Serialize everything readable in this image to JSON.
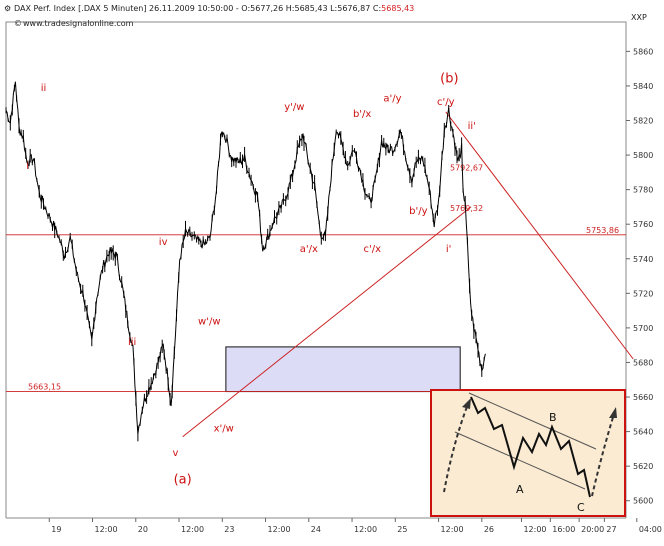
{
  "header": {
    "instrument": "DAX Perf. Index [.DAX  5 Minuten] 26.11.2009 10:50:00",
    "ohlc": "- O:5677,26 H:5685,43 L:5676,87 C:",
    "last": "5685,43",
    "source": "www.tradesignalonline.com",
    "axis_label": "XXP"
  },
  "colors": {
    "price": "#000000",
    "annotation": "#cc1111",
    "level_line": "#cc2222",
    "gap_fill": "#dcdcf7",
    "inset_fill": "#faebd2"
  },
  "chart_data": {
    "type": "candlestick",
    "ylim": [
      5590,
      5877
    ],
    "y_ticks": [
      "5600",
      "5620",
      "5640",
      "5660",
      "5680",
      "5700",
      "5720",
      "5740",
      "5760",
      "5780",
      "5800",
      "5820",
      "5840",
      "5860"
    ],
    "x_ticks": [
      "19",
      "12:00",
      "20",
      "12:00",
      "23",
      "12:00",
      "24",
      "12:00",
      "25",
      "12:00",
      "26",
      "12:00",
      "16:00",
      "20:00",
      "27",
      "04:00"
    ],
    "x_domain": [
      0,
      860
    ],
    "x_tick_positions": [
      60,
      120,
      180,
      240,
      300,
      360,
      420,
      480,
      540,
      600,
      660,
      715,
      755,
      795,
      830,
      875
    ],
    "price_path": [
      [
        0,
        5826
      ],
      [
        6,
        5819
      ],
      [
        13,
        5843
      ],
      [
        18,
        5816
      ],
      [
        24,
        5810
      ],
      [
        29,
        5796
      ],
      [
        38,
        5798
      ],
      [
        46,
        5778
      ],
      [
        55,
        5769
      ],
      [
        63,
        5762
      ],
      [
        72,
        5754
      ],
      [
        81,
        5742
      ],
      [
        89,
        5752
      ],
      [
        99,
        5730
      ],
      [
        108,
        5718
      ],
      [
        114,
        5703
      ],
      [
        119,
        5692
      ],
      [
        126,
        5718
      ],
      [
        134,
        5735
      ],
      [
        143,
        5744
      ],
      [
        153,
        5742
      ],
      [
        162,
        5722
      ],
      [
        169,
        5704
      ],
      [
        176,
        5688
      ],
      [
        183,
        5640
      ],
      [
        189,
        5654
      ],
      [
        195,
        5662
      ],
      [
        203,
        5670
      ],
      [
        211,
        5680
      ],
      [
        218,
        5690
      ],
      [
        225,
        5670
      ],
      [
        229,
        5656
      ],
      [
        235,
        5696
      ],
      [
        241,
        5740
      ],
      [
        249,
        5755
      ],
      [
        258,
        5753
      ],
      [
        266,
        5750
      ],
      [
        275,
        5748
      ],
      [
        283,
        5752
      ],
      [
        292,
        5780
      ],
      [
        299,
        5815
      ],
      [
        305,
        5810
      ],
      [
        313,
        5798
      ],
      [
        322,
        5796
      ],
      [
        331,
        5798
      ],
      [
        340,
        5786
      ],
      [
        349,
        5776
      ],
      [
        356,
        5746
      ],
      [
        363,
        5752
      ],
      [
        371,
        5762
      ],
      [
        380,
        5768
      ],
      [
        388,
        5776
      ],
      [
        396,
        5786
      ],
      [
        404,
        5802
      ],
      [
        412,
        5812
      ],
      [
        419,
        5797
      ],
      [
        428,
        5782
      ],
      [
        436,
        5755
      ],
      [
        443,
        5752
      ],
      [
        451,
        5788
      ],
      [
        458,
        5816
      ],
      [
        466,
        5806
      ],
      [
        474,
        5794
      ],
      [
        482,
        5804
      ],
      [
        489,
        5795
      ],
      [
        498,
        5780
      ],
      [
        505,
        5772
      ],
      [
        512,
        5784
      ],
      [
        521,
        5808
      ],
      [
        530,
        5803
      ],
      [
        538,
        5804
      ],
      [
        547,
        5814
      ],
      [
        556,
        5797
      ],
      [
        563,
        5786
      ],
      [
        569,
        5796
      ],
      [
        578,
        5798
      ],
      [
        587,
        5781
      ],
      [
        594,
        5760
      ],
      [
        600,
        5773
      ],
      [
        608,
        5815
      ],
      [
        614,
        5826
      ],
      [
        620,
        5813
      ],
      [
        627,
        5796
      ],
      [
        632,
        5804
      ],
      [
        634,
        5777
      ],
      [
        637,
        5774
      ],
      [
        640,
        5748
      ],
      [
        643,
        5722
      ],
      [
        646,
        5708
      ],
      [
        649,
        5700
      ],
      [
        652,
        5694
      ],
      [
        656,
        5685
      ],
      [
        660,
        5676
      ],
      [
        665,
        5685
      ]
    ],
    "horizontal_levels": [
      {
        "value": 5753.86,
        "label": "5753,86"
      },
      {
        "value": 5663.15,
        "label": "5663,15"
      },
      {
        "value": 5792.67,
        "label": "5792,67"
      },
      {
        "value": 5769.32,
        "label": "5769,32"
      }
    ],
    "trend_lines": [
      {
        "from": [
          245,
          5637
        ],
        "to": [
          645,
          5770
        ]
      },
      {
        "from": [
          610,
          5825
        ],
        "to": [
          870,
          5682
        ]
      }
    ],
    "gap_zone": {
      "x0": 305,
      "x1": 630,
      "y_low": 5663.15,
      "y_high": 5689
    },
    "wave_labels": [
      {
        "text": "ii",
        "x": 52,
        "y": 5837
      },
      {
        "text": "i",
        "x": 30,
        "y": 5792
      },
      {
        "text": "iv",
        "x": 218,
        "y": 5748
      },
      {
        "text": "iii",
        "x": 175,
        "y": 5690
      },
      {
        "text": "w'/w",
        "x": 282,
        "y": 5702
      },
      {
        "text": "x'/w",
        "x": 302,
        "y": 5640
      },
      {
        "text": "v",
        "x": 235,
        "y": 5626
      },
      {
        "text": "y'/w",
        "x": 400,
        "y": 5826
      },
      {
        "text": "a'/x",
        "x": 420,
        "y": 5744
      },
      {
        "text": "b'/x",
        "x": 494,
        "y": 5822
      },
      {
        "text": "c'/x",
        "x": 508,
        "y": 5744
      },
      {
        "text": "a'/y",
        "x": 536,
        "y": 5831
      },
      {
        "text": "b'/y",
        "x": 572,
        "y": 5766
      },
      {
        "text": "c'/y",
        "x": 610,
        "y": 5829
      },
      {
        "text": "ii'",
        "x": 646,
        "y": 5815
      },
      {
        "text": "i'",
        "x": 614,
        "y": 5744
      }
    ],
    "big_labels": [
      {
        "text": "(b)",
        "x": 615,
        "y": 5842
      },
      {
        "text": "(a)",
        "x": 245,
        "y": 5610
      }
    ],
    "inset": {
      "labels": [
        "A",
        "B",
        "C"
      ]
    }
  }
}
